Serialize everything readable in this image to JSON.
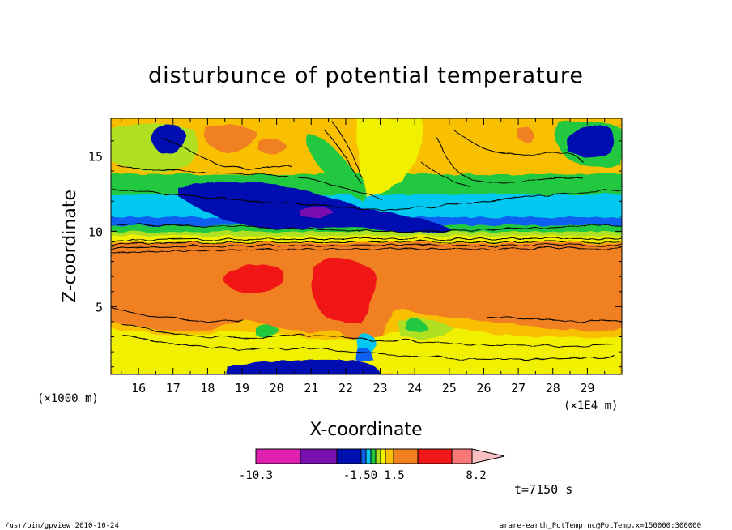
{
  "chart_data": {
    "type": "heatmap",
    "title": "disturbunce of potential temperature",
    "xlabel": "X-coordinate",
    "ylabel": "Z-coordinate",
    "x_unit_left": "(×1000 m)",
    "x_unit_right": "(×1E4 m)",
    "xticks": [
      16,
      17,
      18,
      19,
      20,
      21,
      22,
      23,
      24,
      25,
      26,
      27,
      28,
      29
    ],
    "yticks": [
      5,
      10,
      15
    ],
    "xlim": [
      15.2,
      30.0
    ],
    "ylim": [
      0.5,
      17.5
    ],
    "colorbar": {
      "colors": [
        "#e020b0",
        "#7a10b0",
        "#0010b0",
        "#1060f0",
        "#00c8f0",
        "#20c840",
        "#b0e020",
        "#f0f000",
        "#f8c000",
        "#f08020",
        "#f01818",
        "#f87878",
        "#f8c0c0"
      ],
      "labels": [
        "-10.3",
        "-1.50",
        "1.5",
        "8.2"
      ]
    },
    "time_label": "t=7150 s"
  },
  "footer": {
    "left": "/usr/bin/gpview   2010-10-24",
    "right": "arare-earth_PotTemp.nc@PotTemp,x=150000:300000"
  }
}
